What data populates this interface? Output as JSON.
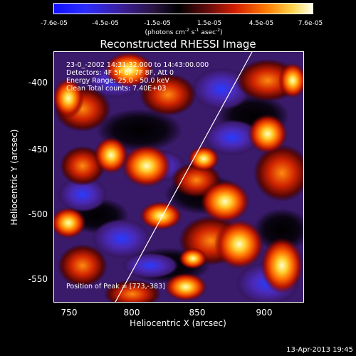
{
  "colorbar": {
    "ticks": [
      "-7.6e-05",
      "-4.5e-05",
      "-1.5e-05",
      "1.5e-05",
      "4.5e-05",
      "7.6e-05"
    ],
    "unit": "(photons cm",
    "unit_exp1": "-2",
    "unit_mid": " s",
    "unit_exp2": "-1",
    "unit_end": " asec",
    "unit_exp3": "-2",
    "unit_close": ")"
  },
  "plot": {
    "title": "Reconstructed RHESSI Image",
    "info": [
      "23-0_-2002 14:31:32.000 to 14:43:00.000",
      "Detectors: 4F 5F 6F 7F 8F, Att 0",
      "Energy Range: 25.0 - 50.0 keV",
      "Clean    Total counts: 7.40E+03"
    ],
    "peak": "Position of Peak = [773,-383]",
    "xlabel": "Heliocentric X (arcsec)",
    "ylabel": "Heliocentric Y (arcsec)",
    "xticks": [
      "750",
      "800",
      "850",
      "900"
    ],
    "yticks": [
      "-400",
      "-450",
      "-500",
      "-550"
    ]
  },
  "footer": {
    "date": "13-Apr-2013 19:45"
  },
  "colors": {
    "background": "#000000",
    "frame": "#ffffff",
    "limb_line": "#ffffff"
  }
}
